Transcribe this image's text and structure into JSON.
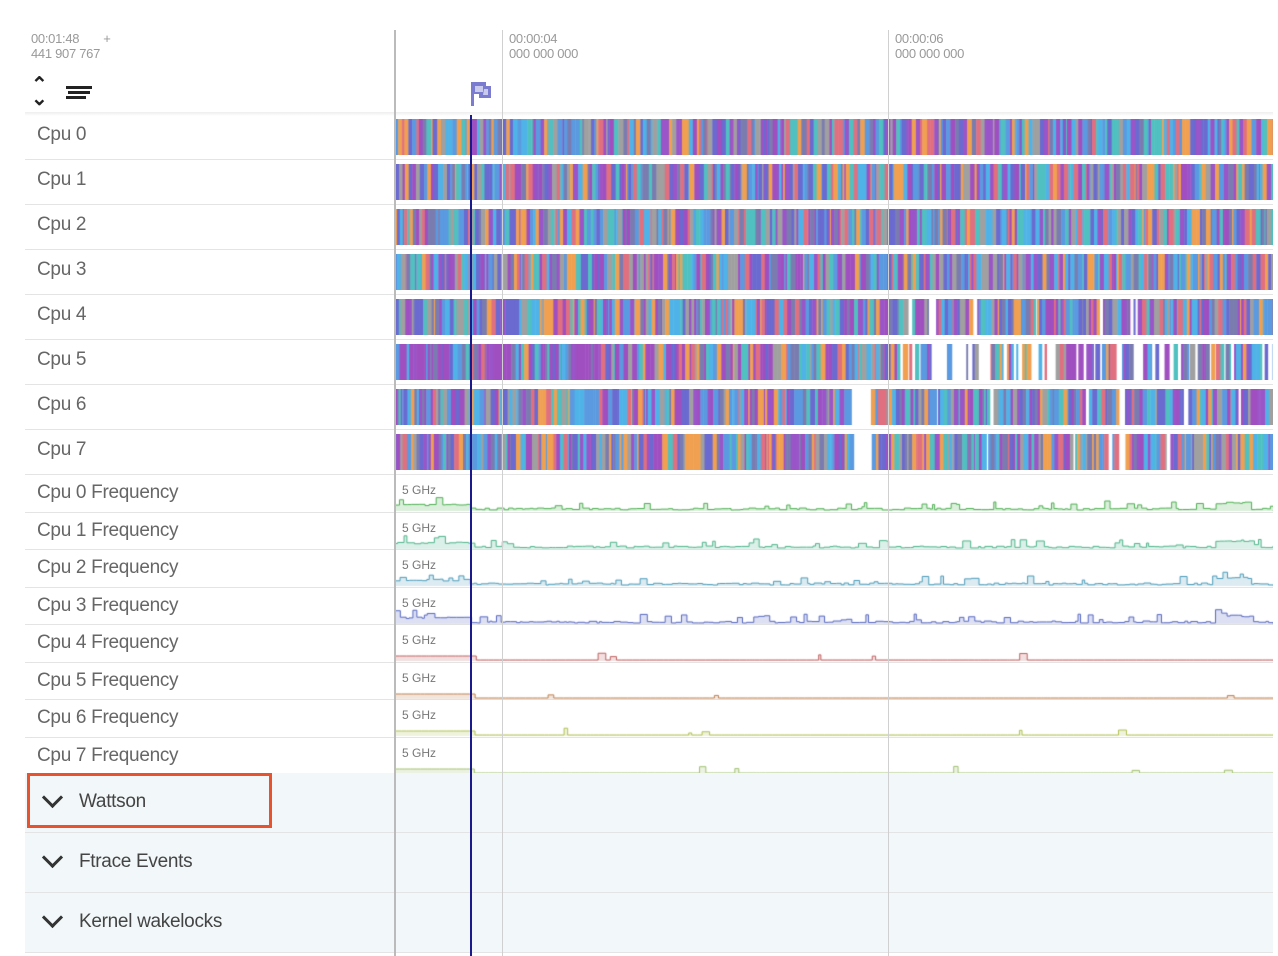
{
  "header": {
    "offset_time": "00:01:48",
    "offset_ns": "441 907 767",
    "plus": "+",
    "ticks": [
      {
        "time": "00:00:04",
        "ns": "000 000 000"
      },
      {
        "time": "00:00:06",
        "ns": "000 000 000"
      }
    ],
    "expand_icon": "unfold-icon",
    "menu_icon": "lines-icon",
    "flag_icon": "flag-icon"
  },
  "cpu_tracks": [
    {
      "label": "Cpu 0"
    },
    {
      "label": "Cpu 1"
    },
    {
      "label": "Cpu 2"
    },
    {
      "label": "Cpu 3"
    },
    {
      "label": "Cpu 4"
    },
    {
      "label": "Cpu 5"
    },
    {
      "label": "Cpu 6"
    },
    {
      "label": "Cpu 7"
    }
  ],
  "freq_tracks": [
    {
      "label": "Cpu 0 Frequency",
      "scale": "5 GHz",
      "color": "#4caf50"
    },
    {
      "label": "Cpu 1 Frequency",
      "scale": "5 GHz",
      "color": "#4db38a"
    },
    {
      "label": "Cpu 2 Frequency",
      "scale": "5 GHz",
      "color": "#4a9ab8"
    },
    {
      "label": "Cpu 3 Frequency",
      "scale": "5 GHz",
      "color": "#5566c0"
    },
    {
      "label": "Cpu 4 Frequency",
      "scale": "5 GHz",
      "color": "#c06060"
    },
    {
      "label": "Cpu 5 Frequency",
      "scale": "5 GHz",
      "color": "#c08050"
    },
    {
      "label": "Cpu 6 Frequency",
      "scale": "5 GHz",
      "color": "#b0c050"
    },
    {
      "label": "Cpu 7 Frequency",
      "scale": "5 GHz",
      "color": "#a0c070"
    }
  ],
  "groups": [
    {
      "label": "Wattson",
      "highlighted": true
    },
    {
      "label": "Ftrace Events"
    },
    {
      "label": "Kernel wakelocks"
    }
  ],
  "colors": {
    "cursor": "#1a1a8c",
    "highlight": "#e8532f",
    "flag": "#7b7bd0"
  }
}
